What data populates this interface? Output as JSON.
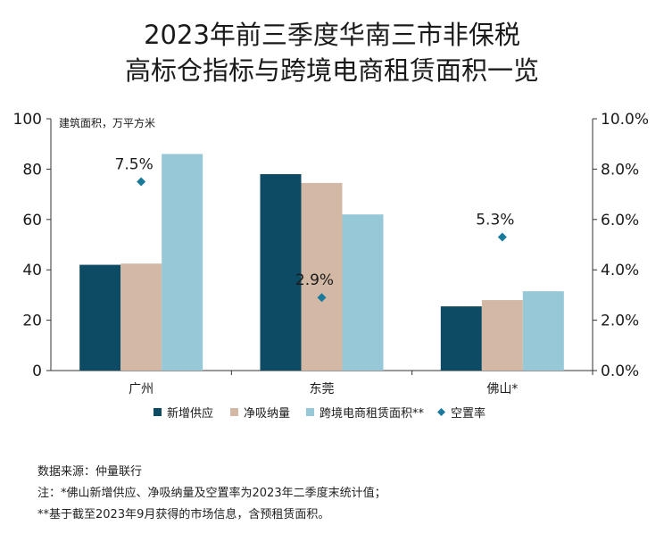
{
  "title_line1": "2023年前三季度华南三市非保税",
  "title_line2": "高标仓指标与跨境电商租赁面积一览",
  "chart_data": {
    "type": "bar",
    "ylabel": "建筑面积，万平方米",
    "ylim": [
      0,
      100
    ],
    "yticks": [
      "0",
      "20",
      "40",
      "60",
      "80",
      "100"
    ],
    "y2lim": [
      0,
      10
    ],
    "y2ticks": [
      "0.0%",
      "2.0%",
      "4.0%",
      "6.0%",
      "8.0%",
      "10.0%"
    ],
    "categories": [
      "广州",
      "东莞",
      "佛山*"
    ],
    "series": [
      {
        "name": "新增供应",
        "kind": "bar",
        "axis": "left",
        "color": "#0d4a63",
        "values": [
          42,
          78,
          25.5
        ]
      },
      {
        "name": "净吸纳量",
        "kind": "bar",
        "axis": "left",
        "color": "#d3b9a5",
        "values": [
          42.5,
          74.5,
          28
        ]
      },
      {
        "name": "跨境电商租赁面积**",
        "kind": "bar",
        "axis": "left",
        "color": "#96c8d8",
        "values": [
          86,
          62,
          31.5
        ]
      },
      {
        "name": "空置率",
        "kind": "scatter",
        "axis": "right",
        "color": "#1a7a9c",
        "values": [
          7.5,
          2.9,
          5.3
        ],
        "labels": [
          "7.5%",
          "2.9%",
          "5.3%"
        ]
      }
    ],
    "legend_position": "bottom"
  },
  "notes": {
    "source": "数据来源：仲量联行",
    "note1": "注：*佛山新增供应、净吸纳量及空置率为2023年二季度末统计值；",
    "note2": "**基于截至2023年9月获得的市场信息，含预租赁面积。"
  }
}
